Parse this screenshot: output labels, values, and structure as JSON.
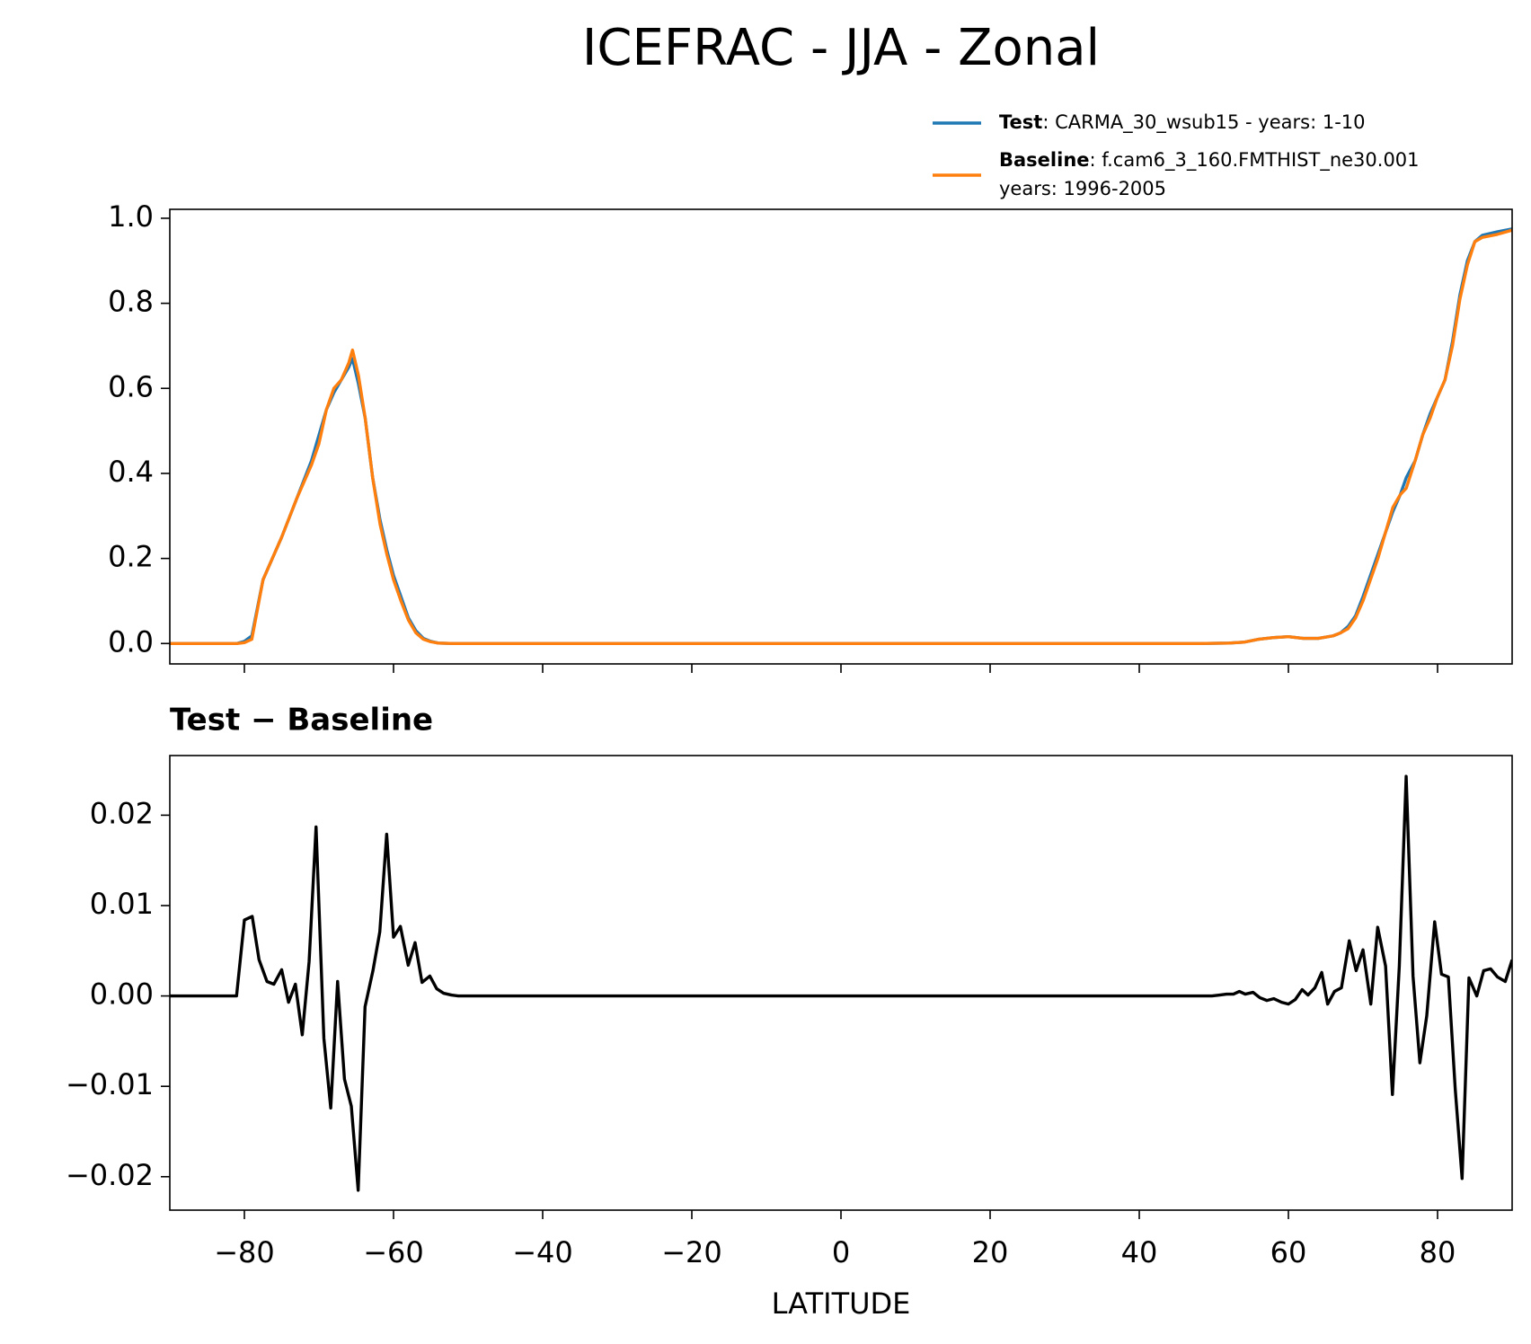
{
  "chart_data": [
    {
      "type": "line",
      "title": "ICEFRAC - JJA - Zonal",
      "x": [
        -90,
        -81,
        -80,
        -79,
        -77.5,
        -75,
        -73,
        -71,
        -70,
        -69,
        -68,
        -67,
        -66,
        -65.5,
        -64.7,
        -63.8,
        -62.8,
        -61.8,
        -60.9,
        -60,
        -59,
        -58,
        -57,
        -56,
        -55,
        -54,
        -52,
        48,
        52,
        54,
        56,
        58,
        60,
        62,
        64,
        66,
        67,
        68,
        69,
        70,
        71,
        72,
        73,
        74,
        75,
        75.8,
        77,
        78,
        79,
        80,
        81,
        82,
        83,
        84,
        85,
        86,
        88,
        90
      ],
      "series": [
        {
          "name": "Test",
          "label": ": CARMA_30_wsub15 - years: 1-10",
          "color": "#1f77b4",
          "values": [
            0,
            0,
            0.005,
            0.018,
            0.15,
            0.25,
            0.34,
            0.43,
            0.49,
            0.55,
            0.59,
            0.62,
            0.65,
            0.67,
            0.61,
            0.53,
            0.39,
            0.29,
            0.22,
            0.16,
            0.11,
            0.06,
            0.03,
            0.012,
            0.005,
            0.001,
            0,
            0,
            0.001,
            0.003,
            0.01,
            0.014,
            0.016,
            0.012,
            0.012,
            0.018,
            0.025,
            0.04,
            0.065,
            0.11,
            0.16,
            0.21,
            0.26,
            0.31,
            0.35,
            0.39,
            0.43,
            0.49,
            0.54,
            0.58,
            0.62,
            0.71,
            0.82,
            0.9,
            0.945,
            0.96,
            0.968,
            0.975
          ]
        },
        {
          "name": "Baseline",
          "label": ": f.cam6_3_160.FMTHIST_ne30.001",
          "label2": "years: 1996-2005",
          "color": "#ff7f0e",
          "values": [
            0,
            0,
            0.002,
            0.01,
            0.15,
            0.25,
            0.34,
            0.42,
            0.47,
            0.55,
            0.6,
            0.62,
            0.66,
            0.69,
            0.63,
            0.53,
            0.39,
            0.28,
            0.21,
            0.15,
            0.1,
            0.055,
            0.025,
            0.01,
            0.004,
            0.001,
            0,
            0,
            0.001,
            0.003,
            0.01,
            0.014,
            0.016,
            0.012,
            0.012,
            0.018,
            0.025,
            0.035,
            0.06,
            0.1,
            0.15,
            0.2,
            0.26,
            0.32,
            0.35,
            0.365,
            0.43,
            0.49,
            0.53,
            0.58,
            0.62,
            0.7,
            0.81,
            0.89,
            0.945,
            0.955,
            0.962,
            0.972
          ]
        }
      ],
      "xlim": [
        -90,
        90
      ],
      "xticks": [
        -80,
        -60,
        -40,
        -20,
        0,
        20,
        40,
        60,
        80
      ],
      "ylim": [
        -0.048,
        1.021
      ],
      "yticks": [
        {
          "value": 0,
          "label": "0.0"
        },
        0.2,
        0.4,
        0.6,
        0.8,
        {
          "value": 1,
          "label": "1.0"
        }
      ]
    },
    {
      "type": "line",
      "title": "Test − Baseline",
      "xlabel": "LATITUDE",
      "color": "#000000",
      "x": [
        -90,
        -81.05,
        -80,
        -78.95,
        -78.03,
        -76.97,
        -76.05,
        -75,
        -74.08,
        -73.16,
        -72.24,
        -71.32,
        -70.39,
        -69.34,
        -68.42,
        -67.5,
        -66.58,
        -65.66,
        -64.74,
        -63.82,
        -62.76,
        -61.84,
        -60.92,
        -60,
        -59.08,
        -58.03,
        -57.11,
        -56.18,
        -55.13,
        -54.21,
        -53.29,
        -52.24,
        -51.32,
        49.74,
        50.79,
        51.71,
        52.63,
        53.42,
        54.21,
        55.26,
        56.18,
        57.11,
        58.03,
        59.08,
        60,
        60.92,
        61.84,
        62.63,
        63.55,
        64.47,
        65.26,
        66.18,
        67.11,
        68.16,
        69.08,
        70,
        71.05,
        71.97,
        73.03,
        73.95,
        74.87,
        75.79,
        76.71,
        77.63,
        78.55,
        79.61,
        80.53,
        81.45,
        82.37,
        83.29,
        84.21,
        85.26,
        86.18,
        87.11,
        88.03,
        89.08,
        90
      ],
      "values": [
        0,
        0,
        0.0084,
        0.0088,
        0.004,
        0.0016,
        0.0013,
        0.0029,
        -0.0007,
        0.0013,
        -0.0043,
        0.0038,
        0.0187,
        -0.0047,
        -0.0124,
        0.0016,
        -0.0092,
        -0.0122,
        -0.0215,
        -0.0012,
        0.0028,
        0.0071,
        0.0179,
        0.0065,
        0.0077,
        0.0034,
        0.0059,
        0.0015,
        0.0022,
        0.0008,
        0.0003,
        0.0001,
        0,
        0,
        0.0001,
        0.0002,
        0.0002,
        0.0005,
        0.0002,
        0.0004,
        -0.0002,
        -0.0005,
        -0.0003,
        -0.0007,
        -0.0009,
        -0.0004,
        0.0007,
        0.0001,
        0.0009,
        0.0026,
        -0.0009,
        0.0005,
        0.0009,
        0.0061,
        0.0028,
        0.0051,
        -0.0009,
        0.0076,
        0.0033,
        -0.0109,
        0.0033,
        0.0243,
        0.0022,
        -0.0074,
        -0.0022,
        0.0082,
        0.0024,
        0.0021,
        -0.0103,
        -0.0202,
        0.002,
        0,
        0.0028,
        0.003,
        0.0021,
        0.0016,
        0.004
      ],
      "xlim": [
        -90,
        90
      ],
      "xticks": [
        {
          "value": -80,
          "label": "−80"
        },
        {
          "value": -60,
          "label": "−60"
        },
        {
          "value": -40,
          "label": "−40"
        },
        {
          "value": -20,
          "label": "−20"
        },
        0,
        20,
        40,
        60,
        80
      ],
      "ylim": [
        -0.0237,
        0.0266
      ],
      "yticks": [
        {
          "value": -0.02,
          "label": "−0.02"
        },
        {
          "value": -0.01,
          "label": "−0.01"
        },
        {
          "value": 0,
          "label": "0.00"
        },
        0.01,
        0.02
      ]
    }
  ]
}
